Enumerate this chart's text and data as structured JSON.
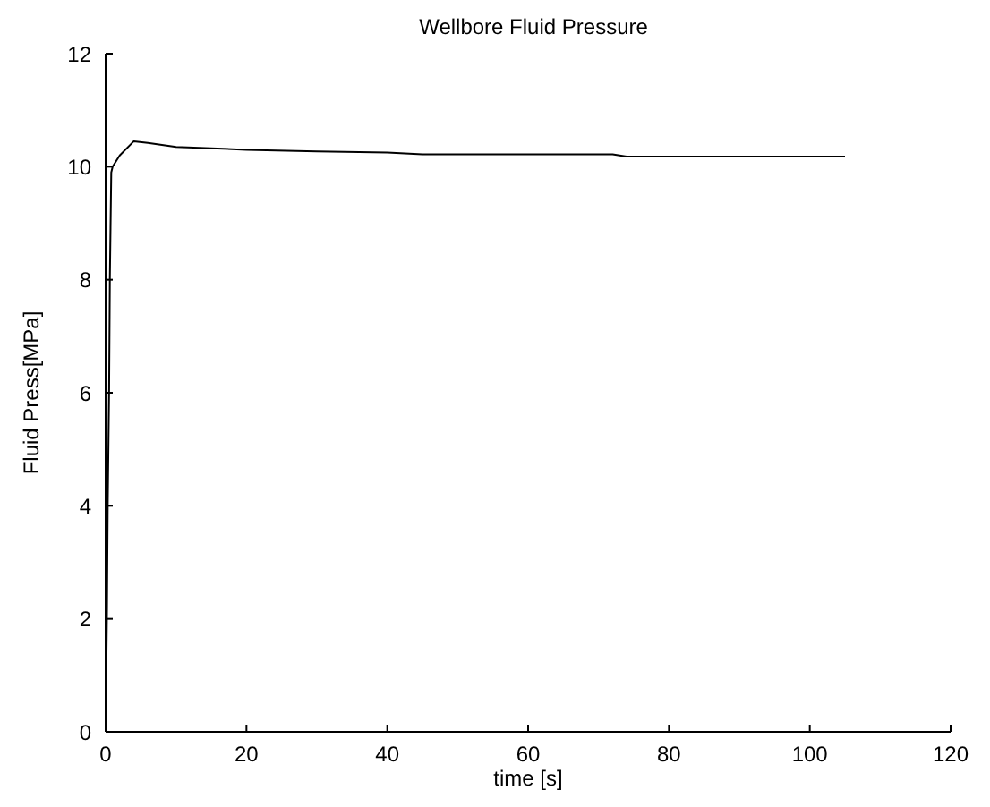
{
  "chart_data": {
    "type": "line",
    "title": "Wellbore Fluid Pressure",
    "xlabel": "time [s]",
    "ylabel": "Fluid Press[MPa]",
    "x": [
      0,
      0.2,
      0.3,
      0.5,
      0.6,
      0.8,
      1,
      2,
      4,
      6,
      10,
      20,
      30,
      40,
      45,
      60,
      72,
      74,
      80,
      105
    ],
    "series": [
      {
        "color": "#000000",
        "values": [
          0,
          2.2,
          4,
          6.1,
          8,
          9.9,
          10,
          10.2,
          10.45,
          10.42,
          10.35,
          10.3,
          10.27,
          10.25,
          10.22,
          10.22,
          10.22,
          10.18,
          10.18,
          10.18
        ]
      }
    ],
    "xlim": [
      0,
      120
    ],
    "xticks": [
      0,
      20,
      40,
      60,
      80,
      100,
      120
    ],
    "ylim": [
      0,
      12
    ],
    "yticks": [
      0,
      2,
      4,
      6,
      8,
      10,
      12
    ],
    "grid": false,
    "legend": false,
    "marker": "none",
    "line_style": "solid"
  }
}
